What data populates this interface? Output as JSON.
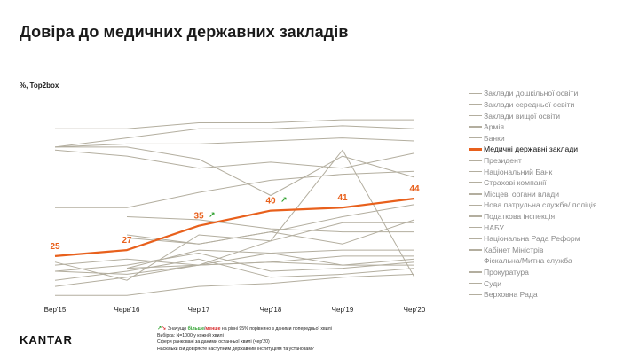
{
  "title": "Довіра до медичних державних закладів",
  "units": "%, Top2box",
  "logo": "KANTAR",
  "notes": {
    "significance_prefix": "Значущо ",
    "significance_more": "більше",
    "significance_sep": "/",
    "significance_less": "менше",
    "significance_suffix": " на рівні 95% порівняно з даними попередньої хвилі",
    "sample": "Вибірка: N=1000 у кожній хвилі",
    "ranking": "Сфери ранковані за даними останньої хвилі  (чер'20)",
    "question": "Наскільки Ви довіряєте наступним державним інституціям та установам?"
  },
  "colors": {
    "highlight": "#e8601c",
    "other": "#b3ae9f",
    "significant_up": "#2ca02c",
    "significant_down": "#d62728"
  },
  "chart_data": {
    "type": "line",
    "title": "Довіра до медичних державних закладів",
    "ylabel": "%, Top2box",
    "xlabel": "",
    "categories": [
      "Вер'15",
      "Черв'16",
      "Чер'17",
      "Чер'18",
      "Чер'19",
      "Чер'20"
    ],
    "ylim": [
      8,
      75
    ],
    "grid": false,
    "legend_position": "right",
    "highlight_series": "Медичні державні заклади",
    "significant_up_points": [
      2,
      3
    ],
    "series": [
      {
        "name": "Заклади дошкільної освіти",
        "values": [
          67,
          67,
          69,
          69,
          70,
          70
        ]
      },
      {
        "name": "Заклади середньої освіти",
        "values": [
          61,
          64,
          67,
          67,
          68,
          67
        ]
      },
      {
        "name": "Заклади вищої освіти",
        "values": [
          61,
          62,
          62,
          63,
          64,
          63
        ]
      },
      {
        "name": "Армія",
        "values": [
          60,
          58,
          54,
          56,
          54,
          59
        ]
      },
      {
        "name": "Банки",
        "values": [
          41,
          41,
          46,
          50,
          52,
          53
        ]
      },
      {
        "name": "Медичні державні заклади",
        "values": [
          25,
          27,
          35,
          40,
          41,
          44
        ]
      },
      {
        "name": "Президент",
        "values": [
          61,
          61,
          57,
          45,
          58,
          51
        ]
      },
      {
        "name": "Національний Банк",
        "values": [
          null,
          31,
          29,
          33,
          38,
          42
        ]
      },
      {
        "name": "Страхові компанії",
        "values": [
          null,
          32,
          29,
          33,
          29,
          37
        ]
      },
      {
        "name": "Місцеві органи влади",
        "values": [
          15,
          18,
          22,
          30,
          36,
          36
        ]
      },
      {
        "name": "Нова патрульна служба/ поліція",
        "values": [
          null,
          38,
          37,
          34,
          33,
          33
        ]
      },
      {
        "name": "Податкова інспекція",
        "values": [
          null,
          21,
          27,
          26,
          27,
          27
        ]
      },
      {
        "name": "НАБУ",
        "values": [
          null,
          21,
          22,
          23,
          25,
          25
        ]
      },
      {
        "name": "Національна Рада Реформ",
        "values": [
          20,
          19,
          22,
          26,
          22,
          24
        ]
      },
      {
        "name": "Кабінет Міністрів",
        "values": [
          20,
          22,
          26,
          20,
          21,
          23
        ]
      },
      {
        "name": "Фіскальна/Митна служба",
        "values": [
          22,
          24,
          22,
          23,
          22,
          22
        ]
      },
      {
        "name": "Прокуратура",
        "values": [
          17,
          20,
          24,
          18,
          19,
          21
        ]
      },
      {
        "name": "Суди",
        "values": [
          12,
          12,
          15,
          16,
          18,
          19
        ]
      },
      {
        "name": "Верховна Рада",
        "values": [
          23,
          17,
          32,
          30,
          60,
          18
        ]
      }
    ]
  }
}
